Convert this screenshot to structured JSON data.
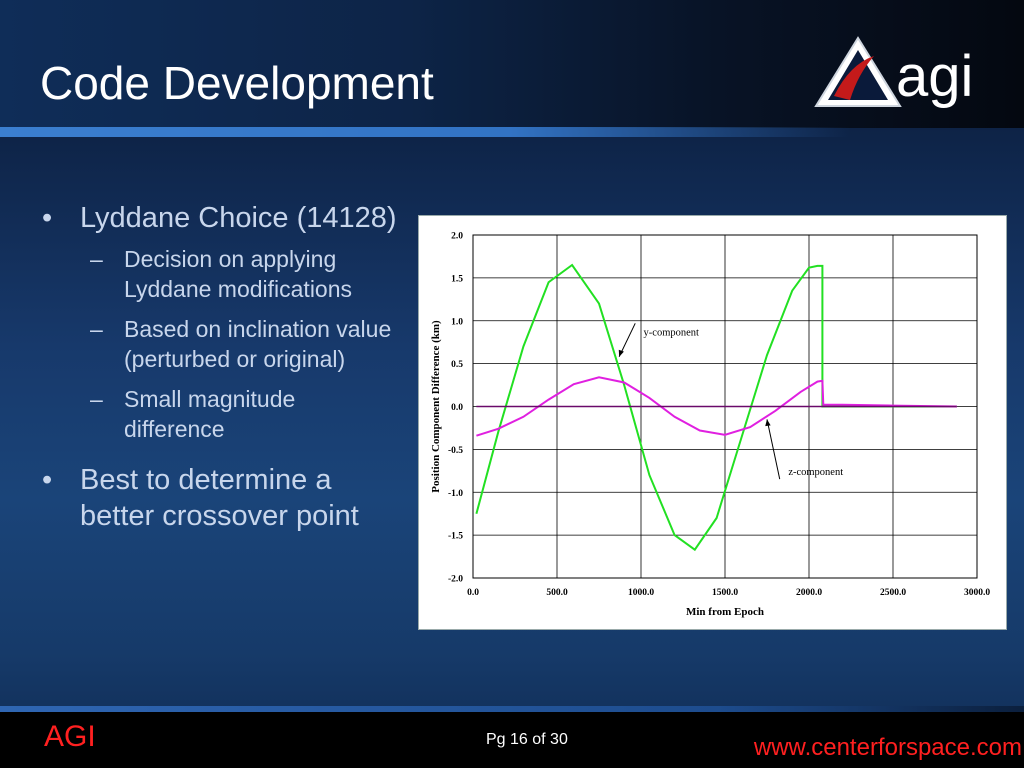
{
  "slide": {
    "title": "Code Development",
    "logo_text": "agi",
    "bullets": [
      {
        "text": "Lyddane Choice (14128)",
        "subs": [
          "Decision on applying Lyddane modifications",
          "Based on inclination value (perturbed or original)",
          "Small magnitude difference"
        ]
      },
      {
        "text": "Best to determine a better crossover point"
      }
    ],
    "bullet_symbol": "•",
    "dash_symbol": "–",
    "footer": {
      "org": "AGI",
      "page": "Pg 16 of 30",
      "url": "www.centerforspace.com"
    }
  },
  "colors": {
    "y_series": "#22e022",
    "z_series": "#e020e0",
    "footer_red": "#ff2020"
  },
  "chart_data": {
    "type": "line",
    "title": "",
    "xlabel": "Min from Epoch",
    "ylabel": "Position Component Difference (km)",
    "xlim": [
      0,
      3000
    ],
    "ylim": [
      -2.0,
      2.0
    ],
    "x_ticks": [
      0,
      500,
      1000,
      1500,
      2000,
      2500,
      3000
    ],
    "x_tick_labels": [
      "0.0",
      "500.0",
      "1000.0",
      "1500.0",
      "2000.0",
      "2500.0",
      "3000.0"
    ],
    "y_ticks": [
      2.0,
      1.5,
      1.0,
      0.5,
      0.0,
      -0.5,
      -1.0,
      -1.5,
      -2.0
    ],
    "y_tick_labels": [
      "2.0",
      "1.5",
      "1.0",
      "0.5",
      "0.0",
      "-0.5",
      "-1.0",
      "-1.5",
      "-2.0"
    ],
    "grid": true,
    "series": [
      {
        "name": "y-component",
        "color": "#22e022",
        "x": [
          20,
          150,
          300,
          450,
          590,
          750,
          900,
          1050,
          1200,
          1320,
          1450,
          1600,
          1750,
          1900,
          2000,
          2050,
          2080,
          2080,
          2200,
          2500,
          2880
        ],
        "y": [
          -1.25,
          -0.3,
          0.7,
          1.45,
          1.65,
          1.2,
          0.25,
          -0.8,
          -1.5,
          -1.67,
          -1.3,
          -0.35,
          0.6,
          1.35,
          1.62,
          1.64,
          1.64,
          0.0,
          0.0,
          0.0,
          0.0
        ]
      },
      {
        "name": "z-component",
        "color": "#e020e0",
        "x": [
          20,
          150,
          300,
          450,
          600,
          750,
          900,
          1050,
          1200,
          1350,
          1500,
          1650,
          1800,
          1950,
          2050,
          2080,
          2085,
          2200,
          2500,
          2880
        ],
        "y": [
          -0.34,
          -0.26,
          -0.12,
          0.08,
          0.26,
          0.34,
          0.28,
          0.1,
          -0.12,
          -0.28,
          -0.33,
          -0.24,
          -0.05,
          0.17,
          0.29,
          0.3,
          0.02,
          0.02,
          0.01,
          0.0
        ]
      },
      {
        "name": "",
        "color": "#6a0a6a",
        "x": [
          20,
          2880
        ],
        "y": [
          0.0,
          0.0
        ]
      }
    ],
    "annotations": [
      {
        "text": "y-component",
        "x": 1180,
        "y": 0.83,
        "arrow_to": [
          870,
          0.58
        ]
      },
      {
        "text": "z-component",
        "x": 2040,
        "y": -0.8,
        "arrow_to": [
          1750,
          -0.15
        ]
      }
    ]
  }
}
